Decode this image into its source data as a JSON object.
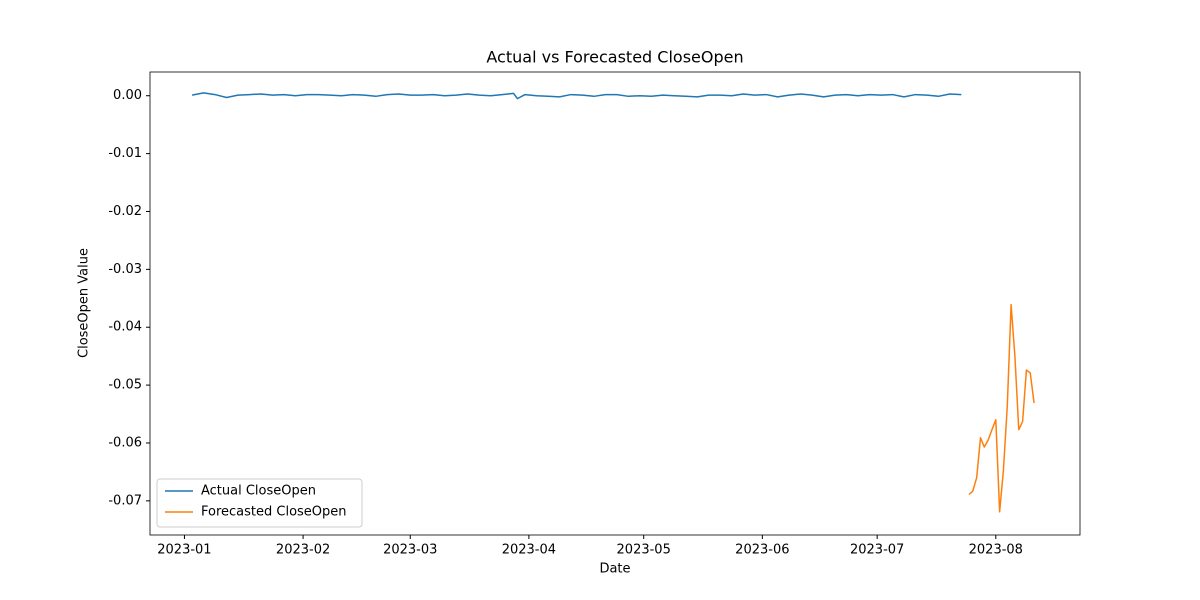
{
  "chart_data": {
    "type": "line",
    "title": "Actual vs Forecasted CloseOpen",
    "x_label": "Date",
    "y_label": "CloseOpen Value",
    "xlim": [
      19349,
      19592
    ],
    "xticks": [
      {
        "value": 19358,
        "label": "2023-01"
      },
      {
        "value": 19389,
        "label": "2023-02"
      },
      {
        "value": 19417,
        "label": "2023-03"
      },
      {
        "value": 19448,
        "label": "2023-04"
      },
      {
        "value": 19478,
        "label": "2023-05"
      },
      {
        "value": 19509,
        "label": "2023-06"
      },
      {
        "value": 19539,
        "label": "2023-07"
      },
      {
        "value": 19570,
        "label": "2023-08"
      }
    ],
    "ylim": [
      -0.0759,
      0.0041
    ],
    "yticks": [
      {
        "value": 0,
        "label": "0.00"
      },
      -0.01,
      -0.02,
      -0.03,
      -0.04,
      -0.05,
      -0.06,
      -0.07
    ],
    "legend": "lower left",
    "series": [
      {
        "name": "Actual CloseOpen",
        "color": "#1f77b4",
        "x": [
          19360,
          19363,
          19366,
          19369,
          19372,
          19375,
          19378,
          19381,
          19384,
          19387,
          19390,
          19393,
          19396,
          19399,
          19402,
          19405,
          19408,
          19411,
          19414,
          19417,
          19420,
          19423,
          19426,
          19429,
          19432,
          19435,
          19438,
          19441,
          19444,
          19445,
          19447,
          19450,
          19453,
          19456,
          19459,
          19462,
          19465,
          19468,
          19471,
          19474,
          19477,
          19480,
          19483,
          19486,
          19489,
          19492,
          19495,
          19498,
          19501,
          19504,
          19507,
          19510,
          19513,
          19516,
          19519,
          19522,
          19525,
          19528,
          19531,
          19534,
          19537,
          19540,
          19543,
          19546,
          19549,
          19552,
          19555,
          19558,
          19561
        ],
        "values": [
          0.0001,
          0.0005,
          0.0002,
          -0.0003,
          0.0001,
          0.0002,
          0.0003,
          0.0001,
          0.0002,
          0.0,
          0.0002,
          0.0002,
          0.0001,
          0.0,
          0.0002,
          0.0001,
          -0.0001,
          0.0002,
          0.0003,
          0.0001,
          0.0001,
          0.0002,
          0.0,
          0.0001,
          0.0003,
          0.0001,
          0.0,
          0.0002,
          0.0004,
          -0.0005,
          0.0002,
          0.0,
          -0.0001,
          -0.0002,
          0.0002,
          0.0001,
          -0.0001,
          0.0002,
          0.0002,
          -0.0001,
          0.0,
          -0.0001,
          0.0001,
          0.0,
          -0.0001,
          -0.0002,
          0.0001,
          0.0001,
          0.0,
          0.0003,
          0.0001,
          0.0002,
          -0.0002,
          0.0001,
          0.0003,
          0.0001,
          -0.0002,
          0.0001,
          0.0002,
          0.0,
          0.0002,
          0.0001,
          0.0002,
          -0.0002,
          0.0002,
          0.0001,
          -0.0001,
          0.0003,
          0.0002
        ]
      },
      {
        "name": "Forecasted CloseOpen",
        "color": "#ff7f0e",
        "x": [
          19563,
          19564,
          19565,
          19566,
          19567,
          19568,
          19569,
          19570,
          19571,
          19572,
          19573,
          19574,
          19575,
          19576,
          19577,
          19578,
          19579,
          19580
        ],
        "values": [
          -0.0689,
          -0.0683,
          -0.066,
          -0.0591,
          -0.0607,
          -0.0595,
          -0.0577,
          -0.056,
          -0.0719,
          -0.0646,
          -0.0536,
          -0.0361,
          -0.0451,
          -0.0577,
          -0.0563,
          -0.0474,
          -0.0479,
          -0.0531
        ]
      }
    ]
  }
}
